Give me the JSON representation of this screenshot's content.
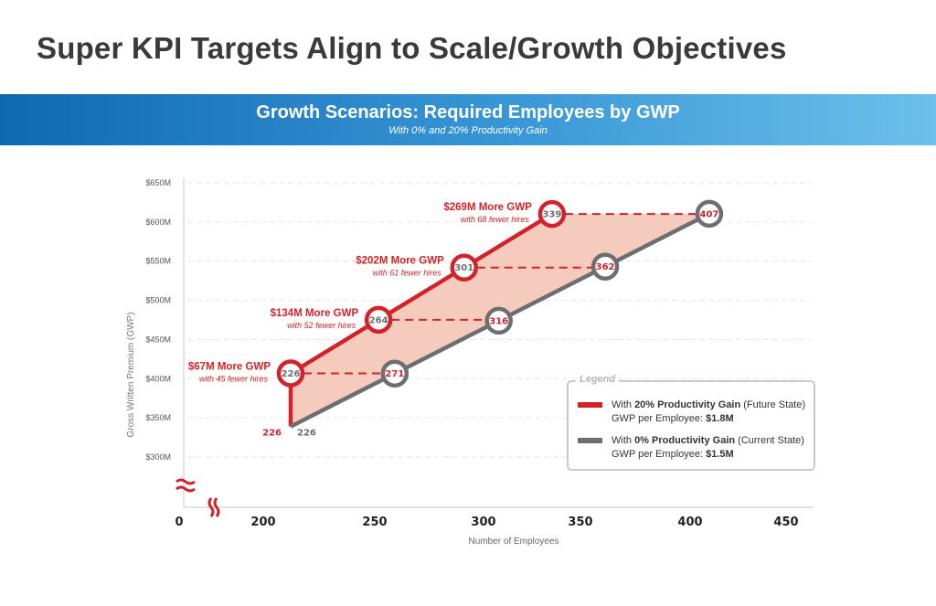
{
  "title": "Super KPI Targets Align to Scale/Growth Objectives",
  "banner": {
    "heading": "Growth Scenarios: Required Employees by GWP",
    "subheading": "With 0% and 20% Productivity Gain"
  },
  "colors": {
    "red": "#d2232a",
    "gray": "#6d6e71",
    "band_fill": "#f4cbbd",
    "banner_start": "#0f69b0",
    "banner_end": "#6cc0ea"
  },
  "chart_data": {
    "type": "line",
    "xlabel": "Number of Employees",
    "ylabel": "Gross Written Premium (GWP)",
    "x_ticks": [
      "0",
      "200",
      "250",
      "300",
      "350",
      "400",
      "450"
    ],
    "y_ticks": [
      "$300M",
      "$350M",
      "$400M",
      "$450M",
      "$500M",
      "$550M",
      "$600M",
      "$650M"
    ],
    "ylim": [
      300,
      650
    ],
    "axis_break": true,
    "grid": true,
    "start_labels": {
      "red": "226",
      "gray": "226"
    },
    "series": [
      {
        "name": "With 20% Productivity Gain (Future State)",
        "color": "red",
        "points": [
          {
            "x": 226,
            "y": 339
          },
          {
            "x": 226,
            "y": 406.8
          },
          {
            "x": 264,
            "y": 475.2
          },
          {
            "x": 301,
            "y": 541.8
          },
          {
            "x": 339,
            "y": 610.2
          }
        ],
        "markers": [
          "226",
          "264",
          "301",
          "339"
        ]
      },
      {
        "name": "With 0% Productivity Gain (Current State)",
        "color": "gray",
        "points": [
          {
            "x": 226,
            "y": 339
          },
          {
            "x": 271,
            "y": 406.5
          },
          {
            "x": 316,
            "y": 474
          },
          {
            "x": 362,
            "y": 543
          },
          {
            "x": 407,
            "y": 610.5
          }
        ],
        "markers": [
          "271",
          "316",
          "362",
          "407"
        ]
      }
    ],
    "annotations": [
      {
        "headline": "$67M More GWP",
        "detail": "with 45 fewer hires",
        "from": 226,
        "to": 271,
        "y": 406.8
      },
      {
        "headline": "$134M More GWP",
        "detail": "with 52 fewer hires",
        "from": 264,
        "to": 316,
        "y": 475.2
      },
      {
        "headline": "$202M More GWP",
        "detail": "with 61 fewer hires",
        "from": 301,
        "to": 362,
        "y": 541.8
      },
      {
        "headline": "$269M More GWP",
        "detail": "with 68 fewer hires",
        "from": 339,
        "to": 407,
        "y": 610.2
      }
    ]
  },
  "legend": {
    "title": "Legend",
    "items": [
      {
        "prefix": "With ",
        "bold": "20% Productivity Gain",
        "suffix": " (Future State)",
        "line2": "GWP per Employee: ",
        "value": "$1.8M",
        "color": "#d2232a"
      },
      {
        "prefix": "With ",
        "bold": "0% Productivity Gain",
        "suffix": " (Current State)",
        "line2": "GWP per Employee: ",
        "value": "$1.5M",
        "color": "#6d6e71"
      }
    ]
  }
}
